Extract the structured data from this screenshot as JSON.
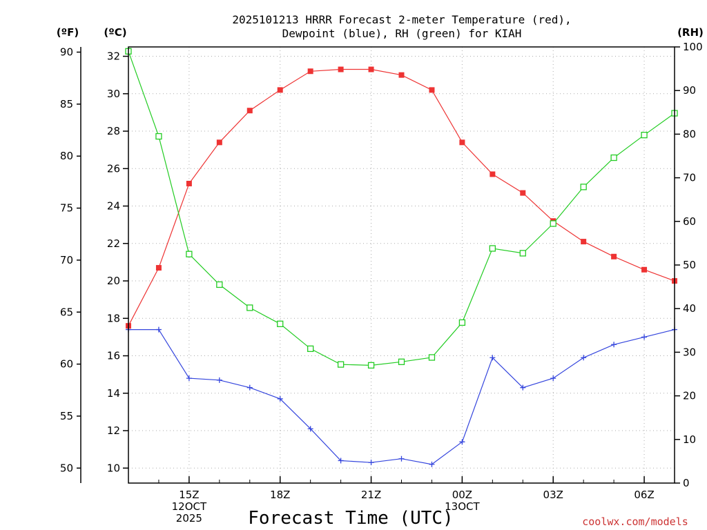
{
  "chart_data": {
    "type": "line",
    "title_lines": [
      "2025101213 HRRR Forecast 2-meter Temperature (red),",
      "Dewpoint (blue), RH (green) for KIAH"
    ],
    "xlabel": "Forecast Time (UTC)",
    "credit": "coolwx.com/models",
    "units": {
      "left_f": "(ºF)",
      "left_c": "(ºC)",
      "right_rh": "(RH)"
    },
    "celsius_axis": {
      "min": 9.2,
      "max": 32.5,
      "ticks": [
        10,
        12,
        14,
        16,
        18,
        20,
        22,
        24,
        26,
        28,
        30,
        32
      ]
    },
    "fahrenheit_ticks": [
      50,
      55,
      60,
      65,
      70,
      75,
      80,
      85,
      90
    ],
    "rh_axis": {
      "min": 0,
      "max": 100,
      "ticks": [
        0,
        10,
        20,
        30,
        40,
        50,
        60,
        70,
        80,
        90,
        100
      ]
    },
    "x_range": [
      13,
      31
    ],
    "x_ticks": [
      {
        "x": 15,
        "lines": [
          "15Z",
          "12OCT",
          "2025"
        ]
      },
      {
        "x": 18,
        "lines": [
          "18Z"
        ]
      },
      {
        "x": 21,
        "lines": [
          "21Z"
        ]
      },
      {
        "x": 24,
        "lines": [
          "00Z",
          "13OCT"
        ]
      },
      {
        "x": 27,
        "lines": [
          "03Z"
        ]
      },
      {
        "x": 30,
        "lines": [
          "06Z"
        ]
      }
    ],
    "x": [
      13,
      14,
      15,
      16,
      17,
      18,
      19,
      20,
      21,
      22,
      23,
      24,
      25,
      26,
      27,
      28,
      29,
      30,
      31
    ],
    "series": [
      {
        "name": "Temperature",
        "axis": "C",
        "color": "#ee3333",
        "marker": "filled-square",
        "values": [
          17.6,
          20.7,
          25.2,
          27.4,
          29.1,
          30.2,
          31.2,
          31.3,
          31.3,
          31.0,
          30.2,
          27.4,
          25.7,
          24.7,
          23.2,
          22.1,
          21.3,
          20.6,
          20.0
        ]
      },
      {
        "name": "Dewpoint",
        "axis": "C",
        "color": "#3344dd",
        "marker": "plus",
        "values": [
          17.4,
          17.4,
          14.8,
          14.7,
          14.3,
          13.7,
          12.1,
          10.4,
          10.3,
          10.5,
          10.2,
          11.4,
          15.9,
          14.3,
          14.8,
          15.9,
          16.6,
          17.0,
          17.4
        ]
      },
      {
        "name": "RH",
        "axis": "RH",
        "color": "#22cc22",
        "marker": "open-square",
        "values": [
          99,
          79.5,
          52.5,
          45.5,
          40.2,
          36.5,
          30.8,
          27.2,
          27.0,
          27.8,
          28.8,
          36.8,
          53.8,
          52.7,
          59.5,
          67.9,
          74.6,
          79.8,
          84.8
        ]
      }
    ]
  }
}
